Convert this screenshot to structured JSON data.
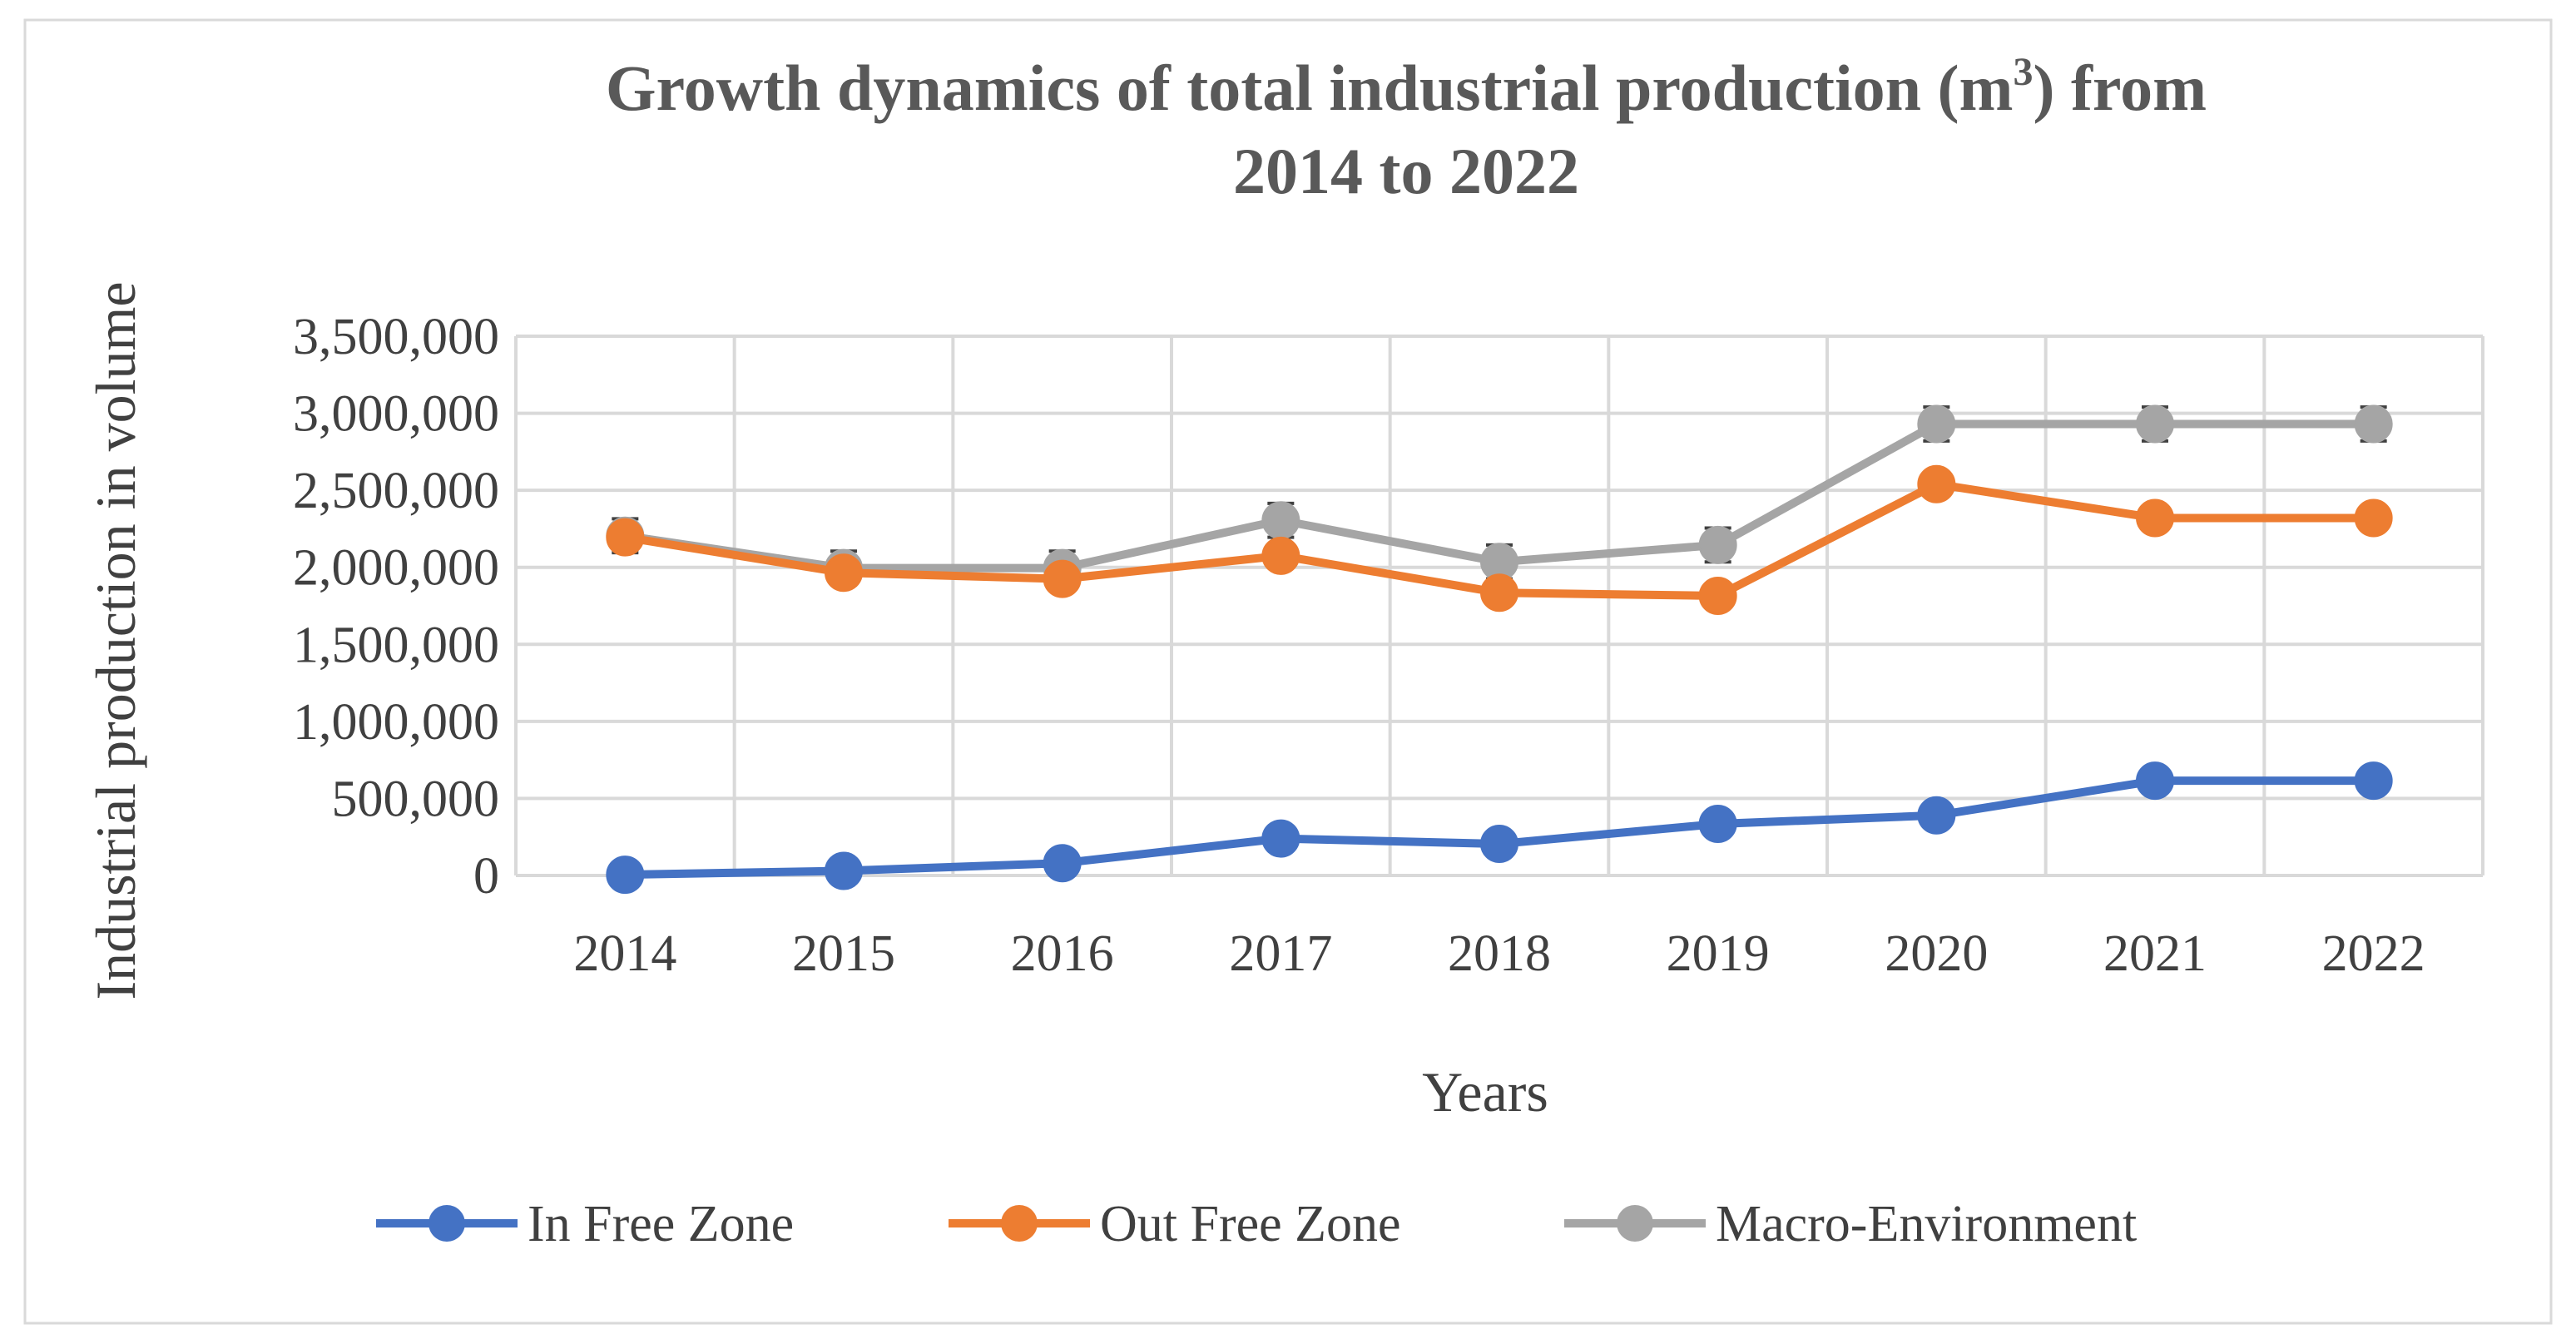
{
  "chart_data": {
    "type": "line",
    "title_line1": "Growth dynamics of total industrial production (m",
    "title_sup": "3",
    "title_line1_end": ") from",
    "title_line2": "2014 to 2022",
    "xlabel": "Years",
    "ylabel": "Industrial production in volume",
    "categories": [
      "2014",
      "2015",
      "2016",
      "2017",
      "2018",
      "2019",
      "2020",
      "2021",
      "2022"
    ],
    "ylim": [
      0,
      3500000
    ],
    "yticks": [
      0,
      500000,
      1000000,
      1500000,
      2000000,
      2500000,
      3000000,
      3500000
    ],
    "ytick_labels": [
      "0",
      "500,000",
      "1,000,000",
      "1,500,000",
      "2,000,000",
      "2,500,000",
      "3,000,000",
      "3,500,000"
    ],
    "grid": true,
    "legend_position": "bottom",
    "series": [
      {
        "name": "In Free Zone",
        "color": "#4472C4",
        "values": [
          5000,
          30000,
          80000,
          240000,
          205000,
          335000,
          390000,
          615000,
          615000
        ],
        "error_bars": false
      },
      {
        "name": "Out Free Zone",
        "color": "#ED7D31",
        "values": [
          2195000,
          1965000,
          1925000,
          2075000,
          1835000,
          1815000,
          2540000,
          2320000,
          2320000
        ],
        "error_bars": false
      },
      {
        "name": "Macro-Environment",
        "color": "#A5A5A5",
        "values": [
          2205000,
          1995000,
          1995000,
          2305000,
          2035000,
          2145000,
          2930000,
          2930000,
          2930000
        ],
        "error_bars": true,
        "error_value": 110000
      }
    ]
  }
}
